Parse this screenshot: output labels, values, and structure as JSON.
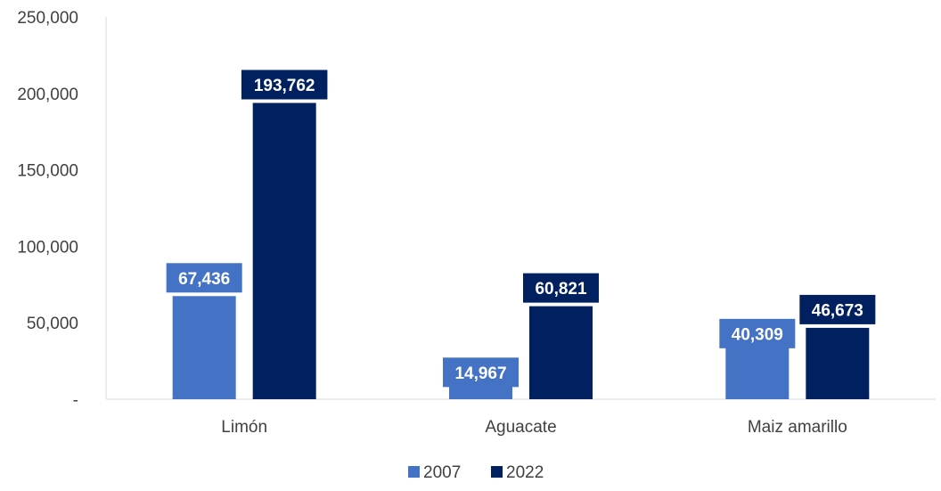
{
  "chart_data": {
    "type": "bar",
    "categories": [
      "Limón",
      "Aguacate",
      "Maiz amarillo"
    ],
    "series": [
      {
        "name": "2007",
        "color": "#4472C4",
        "values": [
          67436,
          14967,
          40309
        ],
        "labels": [
          "67,436",
          "14,967",
          "40,309"
        ]
      },
      {
        "name": "2022",
        "color": "#002060",
        "values": [
          193762,
          60821,
          46673
        ],
        "labels": [
          "193,762",
          "60,821",
          "46,673"
        ]
      }
    ],
    "ylim": [
      0,
      250000
    ],
    "yticks": [
      0,
      50000,
      100000,
      150000,
      200000,
      250000
    ],
    "ytick_labels": [
      "-",
      "50,000",
      "100,000",
      "150,000",
      "200,000",
      "250,000"
    ],
    "title": "",
    "xlabel": "",
    "ylabel": "",
    "grid": false,
    "legend_position": "bottom"
  }
}
